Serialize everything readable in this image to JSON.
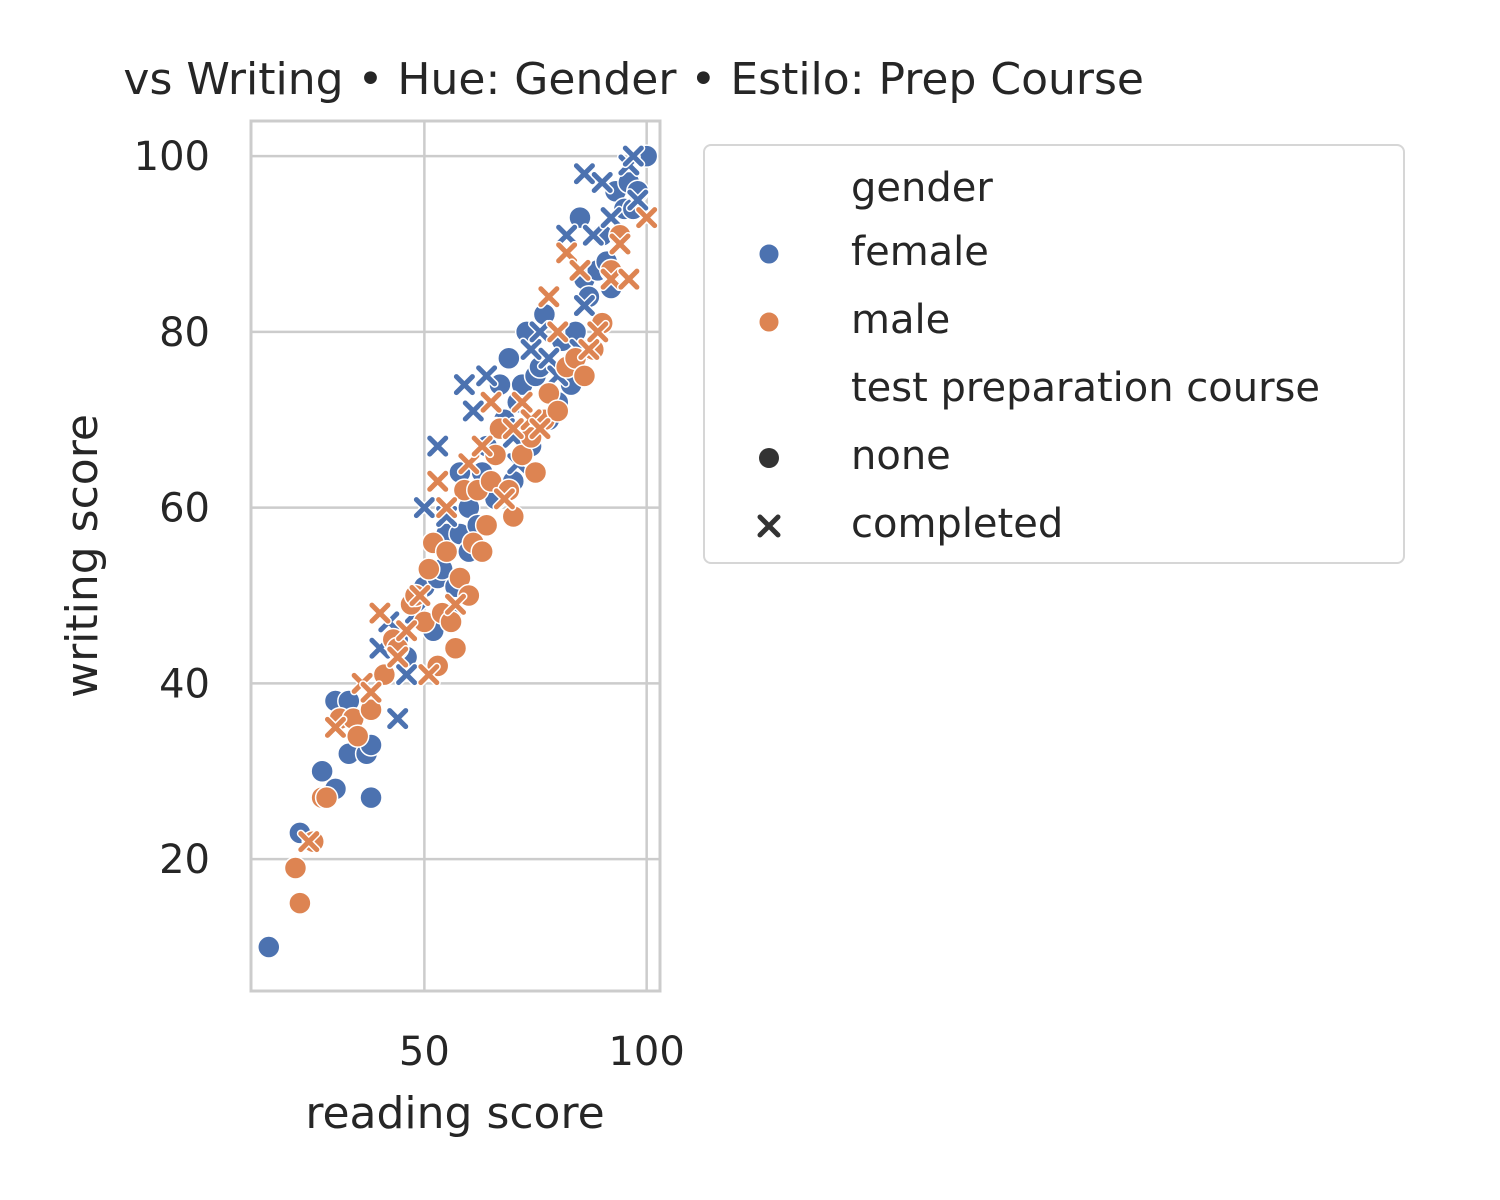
{
  "chart_data": {
    "type": "scatter",
    "title": "vs Writing • Hue: Gender • Estilo: Prep Course",
    "xlabel": "reading score",
    "ylabel": "writing score",
    "xlim": [
      11,
      103
    ],
    "ylim": [
      5,
      104
    ],
    "xticks": [
      50,
      100
    ],
    "yticks": [
      20,
      40,
      60,
      80,
      100
    ],
    "grid": true,
    "hue_name": "gender",
    "style_name": "test preparation course",
    "legend_position": "outside-right",
    "hue_colors": {
      "female": "#4c72b0",
      "male": "#dd8452"
    },
    "series": [
      {
        "hue": "female",
        "style": "none",
        "points": [
          [
            15,
            10
          ],
          [
            22,
            23
          ],
          [
            27,
            30
          ],
          [
            30,
            28
          ],
          [
            30,
            38
          ],
          [
            33,
            32
          ],
          [
            33,
            38
          ],
          [
            37,
            32
          ],
          [
            38,
            27
          ],
          [
            38,
            33
          ],
          [
            44,
            45
          ],
          [
            46,
            43
          ],
          [
            50,
            51
          ],
          [
            52,
            46
          ],
          [
            53,
            52
          ],
          [
            54,
            53
          ],
          [
            55,
            57
          ],
          [
            56,
            48
          ],
          [
            57,
            51
          ],
          [
            58,
            57
          ],
          [
            58,
            64
          ],
          [
            60,
            55
          ],
          [
            60,
            60
          ],
          [
            62,
            58
          ],
          [
            63,
            64
          ],
          [
            64,
            67
          ],
          [
            66,
            61
          ],
          [
            67,
            74
          ],
          [
            68,
            70
          ],
          [
            69,
            77
          ],
          [
            70,
            63
          ],
          [
            71,
            72
          ],
          [
            72,
            74
          ],
          [
            73,
            80
          ],
          [
            74,
            67
          ],
          [
            75,
            75
          ],
          [
            76,
            76
          ],
          [
            77,
            82
          ],
          [
            78,
            70
          ],
          [
            80,
            72
          ],
          [
            81,
            79
          ],
          [
            83,
            74
          ],
          [
            84,
            80
          ],
          [
            85,
            93
          ],
          [
            86,
            86
          ],
          [
            87,
            84
          ],
          [
            89,
            87
          ],
          [
            90,
            91
          ],
          [
            91,
            88
          ],
          [
            92,
            85
          ],
          [
            93,
            96
          ],
          [
            95,
            94
          ],
          [
            96,
            97
          ],
          [
            97,
            94
          ],
          [
            98,
            96
          ],
          [
            100,
            100
          ]
        ]
      },
      {
        "hue": "female",
        "style": "completed",
        "points": [
          [
            40,
            44
          ],
          [
            42,
            47
          ],
          [
            44,
            36
          ],
          [
            46,
            41
          ],
          [
            48,
            48
          ],
          [
            50,
            60
          ],
          [
            53,
            67
          ],
          [
            55,
            59
          ],
          [
            59,
            74
          ],
          [
            61,
            71
          ],
          [
            64,
            75
          ],
          [
            68,
            69
          ],
          [
            70,
            68
          ],
          [
            71,
            65
          ],
          [
            74,
            78
          ],
          [
            76,
            80
          ],
          [
            78,
            77
          ],
          [
            80,
            75
          ],
          [
            82,
            91
          ],
          [
            85,
            78
          ],
          [
            86,
            98
          ],
          [
            86,
            83
          ],
          [
            88,
            91
          ],
          [
            90,
            97
          ],
          [
            92,
            93
          ],
          [
            96,
            99
          ],
          [
            97,
            100
          ],
          [
            98,
            95
          ]
        ]
      },
      {
        "hue": "male",
        "style": "none",
        "points": [
          [
            21,
            19
          ],
          [
            22,
            15
          ],
          [
            25,
            22
          ],
          [
            27,
            27
          ],
          [
            28,
            27
          ],
          [
            31,
            36
          ],
          [
            34,
            36
          ],
          [
            35,
            34
          ],
          [
            38,
            37
          ],
          [
            41,
            41
          ],
          [
            43,
            45
          ],
          [
            44,
            44
          ],
          [
            47,
            49
          ],
          [
            48,
            50
          ],
          [
            50,
            47
          ],
          [
            51,
            53
          ],
          [
            52,
            56
          ],
          [
            53,
            42
          ],
          [
            54,
            48
          ],
          [
            55,
            55
          ],
          [
            56,
            47
          ],
          [
            57,
            44
          ],
          [
            58,
            52
          ],
          [
            59,
            62
          ],
          [
            60,
            50
          ],
          [
            61,
            56
          ],
          [
            62,
            62
          ],
          [
            63,
            55
          ],
          [
            64,
            58
          ],
          [
            65,
            63
          ],
          [
            66,
            66
          ],
          [
            67,
            69
          ],
          [
            69,
            62
          ],
          [
            70,
            59
          ],
          [
            72,
            66
          ],
          [
            74,
            68
          ],
          [
            75,
            64
          ],
          [
            77,
            70
          ],
          [
            78,
            73
          ],
          [
            80,
            71
          ],
          [
            82,
            76
          ],
          [
            84,
            77
          ],
          [
            86,
            75
          ],
          [
            88,
            78
          ],
          [
            90,
            81
          ],
          [
            92,
            87
          ],
          [
            94,
            91
          ]
        ]
      },
      {
        "hue": "male",
        "style": "completed",
        "points": [
          [
            24,
            22
          ],
          [
            30,
            35
          ],
          [
            36,
            40
          ],
          [
            38,
            39
          ],
          [
            40,
            48
          ],
          [
            44,
            43
          ],
          [
            46,
            46
          ],
          [
            49,
            50
          ],
          [
            51,
            41
          ],
          [
            53,
            63
          ],
          [
            55,
            60
          ],
          [
            57,
            49
          ],
          [
            60,
            65
          ],
          [
            63,
            67
          ],
          [
            65,
            72
          ],
          [
            68,
            61
          ],
          [
            70,
            69
          ],
          [
            72,
            72
          ],
          [
            74,
            70
          ],
          [
            76,
            69
          ],
          [
            78,
            84
          ],
          [
            80,
            80
          ],
          [
            82,
            89
          ],
          [
            85,
            87
          ],
          [
            87,
            78
          ],
          [
            89,
            80
          ],
          [
            92,
            86
          ],
          [
            94,
            90
          ],
          [
            96,
            86
          ],
          [
            100,
            93
          ]
        ]
      }
    ]
  },
  "legend": {
    "hue_title": "gender",
    "items_hue": [
      "female",
      "male"
    ],
    "style_title": "test preparation course",
    "items_style": [
      "none",
      "completed"
    ]
  }
}
